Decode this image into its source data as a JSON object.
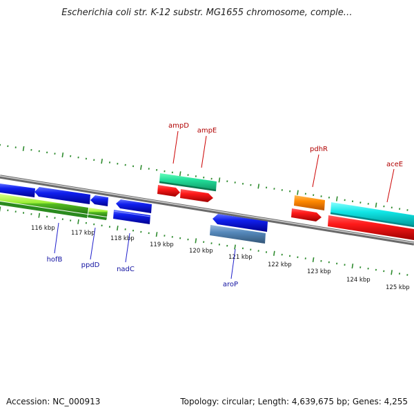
{
  "title": "Escherichia coli str. K-12 substr. MG1655 chromosome, comple…",
  "footer": {
    "accession": "Accession: NC_000913",
    "summary": "Topology: circular; Length: 4,639,675 bp; Genes: 4,255"
  },
  "axis": {
    "unit": "kbp",
    "ticks": [
      {
        "label": "116 kbp",
        "kb": 116
      },
      {
        "label": "117 kbp",
        "kb": 117
      },
      {
        "label": "118 kbp",
        "kb": 118
      },
      {
        "label": "119 kbp",
        "kb": 119
      },
      {
        "label": "120 kbp",
        "kb": 120
      },
      {
        "label": "121 kbp",
        "kb": 121
      },
      {
        "label": "122 kbp",
        "kb": 122
      },
      {
        "label": "123 kbp",
        "kb": 123
      },
      {
        "label": "124 kbp",
        "kb": 124
      },
      {
        "label": "125 kbp",
        "kb": 125
      }
    ]
  },
  "gene_labels_top": [
    {
      "name": "ampD",
      "color": "#b00000"
    },
    {
      "name": "ampE",
      "color": "#b00000"
    },
    {
      "name": "pdhR",
      "color": "#b00000"
    },
    {
      "name": "aceE",
      "color": "#b00000"
    }
  ],
  "gene_labels_bottom": [
    {
      "name": "hofB",
      "color": "#1010a0"
    },
    {
      "name": "ppdD",
      "color": "#1010a0"
    },
    {
      "name": "nadC",
      "color": "#1010a0"
    },
    {
      "name": "aroP",
      "color": "#1010a0"
    }
  ],
  "colors": {
    "backbone": "#8a8a8a",
    "ticks": "#2e8b2e",
    "forward_cds": "#ee0000",
    "reverse_cds": "#0000dd",
    "gene_green": "#22cc88",
    "gene_orange": "#ff8800",
    "gene_cyan": "#11dddd",
    "gene_steel": "#5588bb",
    "gene_lime": "#99ee33"
  }
}
